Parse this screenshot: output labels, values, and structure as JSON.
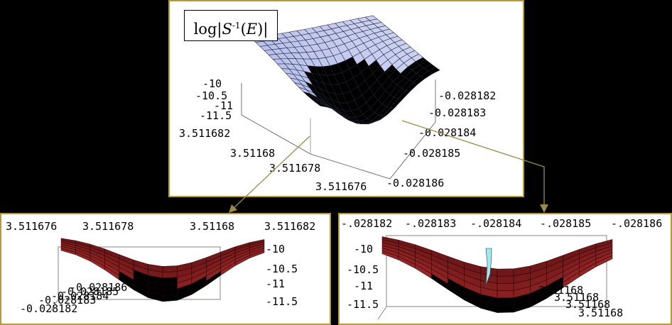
{
  "chart_data": [
    {
      "type": "surface3d",
      "title": "log|S-1(E)|",
      "title_parts": {
        "prefix": "log|",
        "s": "S",
        "sup": "-1",
        "paren": "(",
        "e": "E",
        "close": ")|"
      },
      "z_ticks": [
        "-10",
        "-10.5",
        "-11",
        "-11.5"
      ],
      "x_ticks": [
        "3.511682",
        "3.51168",
        "3.511678",
        "3.511676"
      ],
      "y_ticks": [
        "-0.028182",
        "-0.028183",
        "-0.028184",
        "-0.028185",
        "-0.028186"
      ],
      "zlim": [
        -11.7,
        -9.9
      ],
      "colors": {
        "surface_light": "#d8dcf4",
        "surface_mid": "#b9c2ee",
        "surface_pink": "#f3c9d2",
        "surface_cyan": "#bfeef4"
      }
    },
    {
      "type": "surface3d",
      "x_ticks": [
        "3.511676",
        "3.511678",
        "3.51168",
        "3.511682"
      ],
      "z_ticks": [
        "-10",
        "-10.5",
        "-11",
        "-11.5"
      ],
      "y_ticks": [
        "-0.028186",
        "-0.028185",
        "-0.028184",
        "-0.028183",
        "-0.028182"
      ],
      "colors": {
        "surface_dark": "#5a0f12",
        "surface_red": "#a32b2b",
        "surface_orange": "#e26a1f",
        "surface_purple": "#7a2f8f"
      }
    },
    {
      "type": "surface3d",
      "y_ticks": [
        "-.028182",
        "-.028183",
        "-.028184",
        "-.028185",
        "-.028186"
      ],
      "z_ticks": [
        "-10",
        "-10.5",
        "-11",
        "-11.5"
      ],
      "x_ticks": [
        "3.51168",
        "3.51168",
        "3.51168",
        "3.51168"
      ],
      "colors": {
        "surface_dark": "#5a0f12",
        "surface_red": "#a32b2b",
        "surface_orange": "#e26a1f",
        "surface_cyan": "#9fe8f2"
      }
    }
  ],
  "colors": {
    "frame_border": "#b59a3c",
    "arrow": "#9a8a4a",
    "background": "#000000"
  }
}
